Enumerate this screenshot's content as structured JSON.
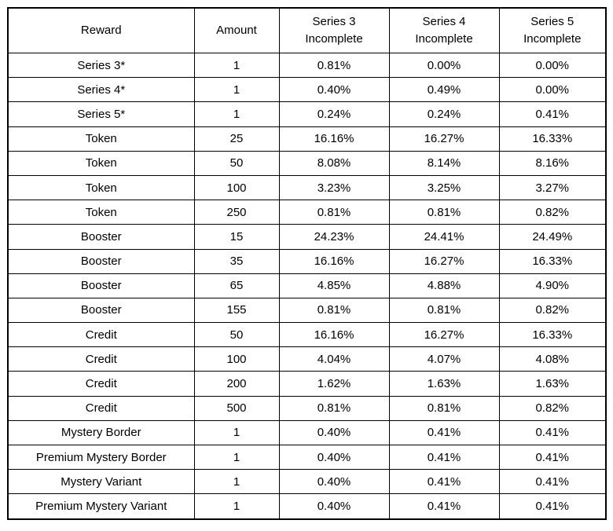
{
  "chart_data": {
    "type": "table",
    "columns": [
      "Reward",
      "Amount",
      "Series 3\nIncomplete",
      "Series 4\nIncomplete",
      "Series 5\nIncomplete"
    ],
    "column_keys": [
      "reward",
      "amount",
      "series3-incomplete",
      "series4-incomplete",
      "series5-incomplete"
    ],
    "rows": [
      [
        "Series 3*",
        "1",
        "0.81%",
        "0.00%",
        "0.00%"
      ],
      [
        "Series 4*",
        "1",
        "0.40%",
        "0.49%",
        "0.00%"
      ],
      [
        "Series 5*",
        "1",
        "0.24%",
        "0.24%",
        "0.41%"
      ],
      [
        "Token",
        "25",
        "16.16%",
        "16.27%",
        "16.33%"
      ],
      [
        "Token",
        "50",
        "8.08%",
        "8.14%",
        "8.16%"
      ],
      [
        "Token",
        "100",
        "3.23%",
        "3.25%",
        "3.27%"
      ],
      [
        "Token",
        "250",
        "0.81%",
        "0.81%",
        "0.82%"
      ],
      [
        "Booster",
        "15",
        "24.23%",
        "24.41%",
        "24.49%"
      ],
      [
        "Booster",
        "35",
        "16.16%",
        "16.27%",
        "16.33%"
      ],
      [
        "Booster",
        "65",
        "4.85%",
        "4.88%",
        "4.90%"
      ],
      [
        "Booster",
        "155",
        "0.81%",
        "0.81%",
        "0.82%"
      ],
      [
        "Credit",
        "50",
        "16.16%",
        "16.27%",
        "16.33%"
      ],
      [
        "Credit",
        "100",
        "4.04%",
        "4.07%",
        "4.08%"
      ],
      [
        "Credit",
        "200",
        "1.62%",
        "1.63%",
        "1.63%"
      ],
      [
        "Credit",
        "500",
        "0.81%",
        "0.81%",
        "0.82%"
      ],
      [
        "Mystery Border",
        "1",
        "0.40%",
        "0.41%",
        "0.41%"
      ],
      [
        "Premium Mystery Border",
        "1",
        "0.40%",
        "0.41%",
        "0.41%"
      ],
      [
        "Mystery Variant",
        "1",
        "0.40%",
        "0.41%",
        "0.41%"
      ],
      [
        "Premium Mystery Variant",
        "1",
        "0.40%",
        "0.41%",
        "0.41%"
      ]
    ],
    "colors": {
      "border": "#000000",
      "background": "#ffffff",
      "text": "#000000"
    }
  }
}
